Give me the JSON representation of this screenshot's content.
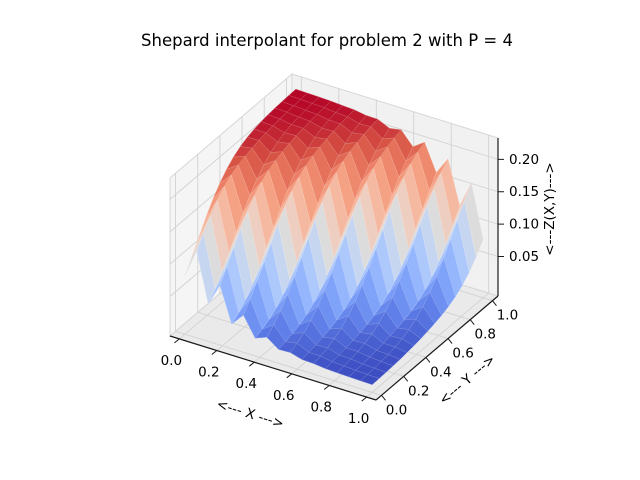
{
  "figure": {
    "background": "#ffffff"
  },
  "chart_data": {
    "type": "surface",
    "title": "Shepard interpolant for problem 2 with P = 4",
    "xlabel": "<--- X --->",
    "ylabel": "<--- Y --->",
    "zlabel": "<---Z(X,Y)--->",
    "x_tick_labels": [
      "0.0",
      "0.2",
      "0.4",
      "0.6",
      "0.8",
      "1.0"
    ],
    "y_tick_labels": [
      "0.0",
      "0.2",
      "0.4",
      "0.6",
      "0.8",
      "1.0"
    ],
    "z_tick_labels": [
      "0.05",
      "0.10",
      "0.15",
      "0.20"
    ],
    "x_tick_values": [
      0.0,
      0.2,
      0.4,
      0.6,
      0.8,
      1.0
    ],
    "y_tick_values": [
      0.0,
      0.2,
      0.4,
      0.6,
      0.8,
      1.0
    ],
    "z_tick_values": [
      0.05,
      0.1,
      0.15,
      0.2
    ],
    "xlim": [
      -0.05,
      1.05
    ],
    "ylim": [
      -0.05,
      1.05
    ],
    "zlim": [
      -0.011,
      0.233
    ],
    "grid_on": true,
    "legend": "none",
    "colormap": "coolwarm",
    "colormap_stops": [
      "#3b4cc0",
      "#5977e3",
      "#7b9ff9",
      "#9ebeff",
      "#c0d4f5",
      "#dddcdc",
      "#f2cab9",
      "#f7ac8e",
      "#ee8468",
      "#d65244",
      "#b40426"
    ],
    "grid_order": "z_grid[y_index][x_index]",
    "x": [
      0,
      0.0625,
      0.125,
      0.1875,
      0.25,
      0.3125,
      0.375,
      0.4375,
      0.5,
      0.5625,
      0.625,
      0.6875,
      0.75,
      0.8125,
      0.875,
      0.9375,
      1
    ],
    "y": [
      0,
      0.0625,
      0.125,
      0.1875,
      0.25,
      0.3125,
      0.375,
      0.4375,
      0.5,
      0.5625,
      0.625,
      0.6875,
      0.75,
      0.8125,
      0.875,
      0.9375,
      1
    ],
    "z_grid": [
      [
        0.0791,
        0.123,
        0.0468,
        0.0813,
        0.0271,
        0.0465,
        0.0166,
        0.0236,
        0.0104,
        0.0112,
        0.0061,
        0.0053,
        0.0033,
        0.0025,
        0.0018,
        0.0013,
        0.0009
      ],
      [
        0.0992,
        0.1431,
        0.0614,
        0.102,
        0.0355,
        0.0625,
        0.0211,
        0.0336,
        0.0132,
        0.0164,
        0.008,
        0.0077,
        0.0047,
        0.0037,
        0.0025,
        0.0018,
        0.0013
      ],
      [
        0.1203,
        0.1608,
        0.0791,
        0.123,
        0.0468,
        0.0813,
        0.0271,
        0.0465,
        0.0166,
        0.0236,
        0.0104,
        0.0112,
        0.0061,
        0.0053,
        0.0033,
        0.0025,
        0.0018
      ],
      [
        0.1409,
        0.1755,
        0.0992,
        0.1431,
        0.0614,
        0.102,
        0.0355,
        0.0625,
        0.0211,
        0.0336,
        0.0132,
        0.0164,
        0.008,
        0.0077,
        0.0047,
        0.0037,
        0.0025
      ],
      [
        0.1597,
        0.1867,
        0.1203,
        0.1608,
        0.0791,
        0.123,
        0.0468,
        0.0813,
        0.0271,
        0.0465,
        0.0166,
        0.0236,
        0.0104,
        0.0112,
        0.0061,
        0.0053,
        0.0033
      ],
      [
        0.1757,
        0.1951,
        0.1409,
        0.1755,
        0.0992,
        0.1431,
        0.0614,
        0.102,
        0.0355,
        0.0625,
        0.0211,
        0.0336,
        0.0132,
        0.0164,
        0.008,
        0.0077,
        0.0047
      ],
      [
        0.1886,
        0.2011,
        0.1597,
        0.1867,
        0.1203,
        0.1608,
        0.0791,
        0.123,
        0.0468,
        0.0813,
        0.0271,
        0.0465,
        0.0166,
        0.0236,
        0.0104,
        0.0112,
        0.0061
      ],
      [
        0.1986,
        0.2056,
        0.1757,
        0.1951,
        0.1409,
        0.1755,
        0.0992,
        0.1431,
        0.0614,
        0.102,
        0.0355,
        0.0625,
        0.0211,
        0.0336,
        0.0132,
        0.0164,
        0.008
      ],
      [
        0.2059,
        0.209,
        0.1886,
        0.2011,
        0.1597,
        0.1867,
        0.1203,
        0.1608,
        0.0791,
        0.123,
        0.0468,
        0.0813,
        0.0271,
        0.0465,
        0.0166,
        0.0236,
        0.0104
      ],
      [
        0.211,
        0.2119,
        0.1986,
        0.2056,
        0.1757,
        0.1951,
        0.1409,
        0.1755,
        0.0992,
        0.1431,
        0.0614,
        0.102,
        0.0355,
        0.0625,
        0.0211,
        0.0336,
        0.0132
      ],
      [
        0.2145,
        0.2142,
        0.2059,
        0.209,
        0.1886,
        0.2011,
        0.1597,
        0.1867,
        0.1203,
        0.1608,
        0.0791,
        0.123,
        0.0468,
        0.0813,
        0.0271,
        0.0465,
        0.0166
      ],
      [
        0.2169,
        0.2161,
        0.211,
        0.2119,
        0.1986,
        0.2056,
        0.1757,
        0.1951,
        0.1409,
        0.1755,
        0.0992,
        0.1431,
        0.0614,
        0.102,
        0.0355,
        0.0625,
        0.0211
      ],
      [
        0.2185,
        0.2175,
        0.2145,
        0.2142,
        0.2059,
        0.209,
        0.1886,
        0.2011,
        0.1597,
        0.1867,
        0.1203,
        0.1608,
        0.0791,
        0.123,
        0.0468,
        0.0813,
        0.0271
      ],
      [
        0.2197,
        0.2189,
        0.2169,
        0.2161,
        0.211,
        0.2119,
        0.1986,
        0.2056,
        0.1757,
        0.1951,
        0.1409,
        0.1755,
        0.0992,
        0.1431,
        0.0614,
        0.102,
        0.0355
      ],
      [
        0.2204,
        0.2197,
        0.2185,
        0.2175,
        0.2145,
        0.2142,
        0.2059,
        0.209,
        0.1886,
        0.2011,
        0.1597,
        0.1867,
        0.1203,
        0.1608,
        0.0791,
        0.123,
        0.0468
      ],
      [
        0.2209,
        0.2204,
        0.2197,
        0.2189,
        0.2169,
        0.2161,
        0.211,
        0.2119,
        0.1986,
        0.2056,
        0.1757,
        0.1951,
        0.1409,
        0.1755,
        0.0992,
        0.1431,
        0.0614
      ],
      [
        0.2213,
        0.2209,
        0.2204,
        0.2197,
        0.2185,
        0.2175,
        0.2145,
        0.2142,
        0.2059,
        0.209,
        0.1886,
        0.2011,
        0.1597,
        0.1867,
        0.1203,
        0.1608,
        0.0791
      ]
    ],
    "styles": {
      "pane_left": "#f5f5f5",
      "pane_back": "#f1f1f1",
      "pane_bottom": "#eaeaea",
      "pane_edge": "#d6d6d6",
      "grid_line": "#d2d2d2",
      "axis_line": "#1a1a1a",
      "text_color": "#000000"
    }
  }
}
